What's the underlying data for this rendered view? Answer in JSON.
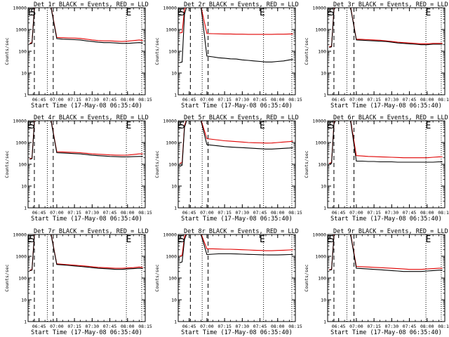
{
  "chart_data": {
    "type": "line",
    "xlabel": "Start Time (17-May-08 06:35:40)",
    "ylabel": "Counts/sec",
    "yscale": "log",
    "ylim": [
      1,
      10000
    ],
    "xlim": [
      "06:35:40",
      "08:15"
    ],
    "x_ticks": [
      "06:45",
      "07:00",
      "07:15",
      "07:30",
      "07:45",
      "08:00",
      "08:15"
    ],
    "y_ticks": [
      "1",
      "10",
      "100",
      "1000",
      "10000"
    ],
    "grid": false,
    "legend": "",
    "colors": {
      "events": "#000000",
      "lld": "#e00000"
    },
    "x_times": [
      "06:37",
      "06:39",
      "06:41",
      "06:43",
      "06:45",
      "06:50",
      "06:55",
      "07:00",
      "07:05",
      "07:10",
      "07:15",
      "07:20",
      "07:25",
      "07:30",
      "07:35",
      "07:40",
      "07:45",
      "07:50",
      "07:55",
      "08:00",
      "08:05",
      "08:10",
      "08:13"
    ],
    "panels": [
      {
        "title": "Det  1r BLACK = Events, RED = LLD",
        "markers": [
          {
            "time": "06:38",
            "label": "E"
          },
          {
            "time": "06:40",
            "label": "S"
          },
          {
            "time": "08:01",
            "label": "E"
          }
        ],
        "dashed_lines": [
          "06:41",
          "06:57"
        ],
        "dotted_lines": [
          "06:52",
          "07:59",
          "08:12"
        ],
        "series": [
          {
            "name": "Events",
            "values": [
              220,
              230,
              9000,
              12000,
              12000,
              12000,
              11000,
              380,
              360,
              350,
              340,
              330,
              300,
              280,
              260,
              250,
              250,
              240,
              230,
              230,
              240,
              250,
              240
            ]
          },
          {
            "name": "LLD",
            "values": [
              230,
              250,
              9500,
              13000,
              13000,
              13000,
              12000,
              430,
              420,
              410,
              400,
              390,
              360,
              330,
              310,
              300,
              300,
              290,
              280,
              290,
              310,
              330,
              310
            ]
          }
        ]
      },
      {
        "title": "Det  2r BLACK = Events, RED = LLD",
        "markers": [
          {
            "time": "06:37",
            "label": "E"
          },
          {
            "time": "06:39",
            "label": "S"
          },
          {
            "time": "07:47",
            "label": "E"
          }
        ],
        "dashed_lines": [
          "06:46",
          "07:01"
        ],
        "dotted_lines": [
          "06:56",
          "07:48",
          "08:12"
        ],
        "series": [
          {
            "name": "Events",
            "values": [
              30,
              32,
              5000,
              12000,
              12000,
              12000,
              11000,
              60,
              55,
              50,
              48,
              45,
              44,
              40,
              38,
              36,
              34,
              32,
              32,
              34,
              36,
              40,
              42
            ]
          },
          {
            "name": "LLD",
            "values": [
              700,
              720,
              9000,
              12000,
              12000,
              12000,
              11000,
              650,
              640,
              630,
              620,
              620,
              610,
              610,
              600,
              600,
              600,
              600,
              600,
              610,
              610,
              620,
              620
            ]
          }
        ]
      },
      {
        "title": "Det  3r BLACK = Events, RED = LLD",
        "markers": [
          {
            "time": "06:37",
            "label": "E"
          },
          {
            "time": "06:39",
            "label": "S"
          },
          {
            "time": "08:01",
            "label": "E"
          }
        ],
        "dashed_lines": [
          "06:41",
          "06:58"
        ],
        "dotted_lines": [
          "06:52",
          "07:59",
          "08:12"
        ],
        "series": [
          {
            "name": "Events",
            "values": [
              150,
              160,
              8000,
              12000,
              12000,
              12000,
              11000,
              330,
              320,
              310,
              300,
              290,
              280,
              260,
              240,
              230,
              220,
              210,
              200,
              200,
              210,
              210,
              210
            ]
          },
          {
            "name": "LLD",
            "values": [
              160,
              170,
              8500,
              13000,
              13000,
              13000,
              12000,
              360,
              350,
              340,
              330,
              320,
              300,
              280,
              260,
              250,
              240,
              230,
              220,
              220,
              230,
              230,
              230
            ]
          }
        ]
      },
      {
        "title": "Det  4r BLACK = Events, RED = LLD",
        "markers": [
          {
            "time": "06:37",
            "label": "E"
          },
          {
            "time": "06:39",
            "label": "S"
          },
          {
            "time": "08:01",
            "label": "E"
          }
        ],
        "dashed_lines": [
          "06:41",
          "06:57"
        ],
        "dotted_lines": [
          "06:52",
          "07:59",
          "08:12"
        ],
        "series": [
          {
            "name": "Events",
            "values": [
              170,
              180,
              8500,
              12000,
              12000,
              12000,
              11000,
              340,
              330,
              320,
              310,
              300,
              280,
              260,
              250,
              240,
              230,
              225,
              220,
              220,
              225,
              230,
              230
            ]
          },
          {
            "name": "LLD",
            "values": [
              180,
              190,
              9000,
              13000,
              13000,
              13000,
              12000,
              380,
              370,
              360,
              350,
              340,
              320,
              300,
              290,
              280,
              270,
              265,
              260,
              265,
              280,
              300,
              300
            ]
          }
        ]
      },
      {
        "title": "Det  5r BLACK = Events, RED = LLD",
        "markers": [
          {
            "time": "06:37",
            "label": "E"
          },
          {
            "time": "06:39",
            "label": "S"
          },
          {
            "time": "07:47",
            "label": "E"
          }
        ],
        "dashed_lines": [
          "06:46",
          "07:01"
        ],
        "dotted_lines": [
          "06:56",
          "07:48",
          "08:12"
        ],
        "series": [
          {
            "name": "Events",
            "values": [
              80,
              90,
              5000,
              11000,
              11000,
              11000,
              10000,
              800,
              750,
              700,
              650,
              620,
              600,
              580,
              560,
              540,
              520,
              500,
              500,
              520,
              540,
              560,
              580
            ]
          },
          {
            "name": "LLD",
            "values": [
              110,
              120,
              6000,
              12000,
              12000,
              12000,
              11000,
              1500,
              1400,
              1300,
              1200,
              1150,
              1100,
              1050,
              1000,
              980,
              960,
              940,
              950,
              1000,
              1050,
              1100,
              1150
            ]
          }
        ]
      },
      {
        "title": "Det  6r BLACK = Events, RED = LLD",
        "markers": [
          {
            "time": "06:37",
            "label": "E"
          },
          {
            "time": "06:39",
            "label": "S"
          },
          {
            "time": "08:01",
            "label": "E"
          }
        ],
        "dashed_lines": [
          "06:41",
          "06:58"
        ],
        "dotted_lines": [
          "06:52",
          "07:59",
          "08:12"
        ],
        "series": [
          {
            "name": "Events",
            "values": [
              100,
              110,
              7000,
              12000,
              12000,
              12000,
              11000,
              140,
              140,
              135,
              135,
              130,
              130,
              130,
              125,
              125,
              125,
              125,
              125,
              125,
              125,
              130,
              130
            ]
          },
          {
            "name": "LLD",
            "values": [
              110,
              120,
              7500,
              13000,
              13000,
              13000,
              12000,
              250,
              240,
              230,
              225,
              220,
              215,
              210,
              205,
              200,
              200,
              200,
              200,
              200,
              210,
              220,
              220
            ]
          }
        ]
      },
      {
        "title": "Det  7r BLACK = Events, RED = LLD",
        "markers": [
          {
            "time": "06:37",
            "label": "E"
          },
          {
            "time": "06:39",
            "label": "S"
          },
          {
            "time": "08:01",
            "label": "E"
          }
        ],
        "dashed_lines": [
          "06:41",
          "06:57"
        ],
        "dotted_lines": [
          "06:52",
          "07:59",
          "08:12"
        ],
        "series": [
          {
            "name": "Events",
            "values": [
              220,
              230,
              9000,
              12000,
              12000,
              12000,
              11000,
              420,
              400,
              380,
              360,
              340,
              320,
              300,
              280,
              270,
              260,
              250,
              250,
              260,
              270,
              280,
              270
            ]
          },
          {
            "name": "LLD",
            "values": [
              230,
              240,
              9500,
              13000,
              13000,
              13000,
              12000,
              450,
              430,
              410,
              390,
              370,
              350,
              330,
              310,
              300,
              290,
              280,
              280,
              290,
              300,
              320,
              300
            ]
          }
        ]
      },
      {
        "title": "Det  8r BLACK = Events, RED = LLD",
        "markers": [
          {
            "time": "06:37",
            "label": "E"
          },
          {
            "time": "06:39",
            "label": "S"
          },
          {
            "time": "07:47",
            "label": "E"
          }
        ],
        "dashed_lines": [
          "06:46",
          "07:01"
        ],
        "dotted_lines": [
          "06:56",
          "07:48",
          "08:12"
        ],
        "series": [
          {
            "name": "Events",
            "values": [
              500,
              550,
              6000,
              11000,
              11000,
              11000,
              10000,
              1200,
              1250,
              1300,
              1300,
              1300,
              1280,
              1250,
              1220,
              1200,
              1180,
              1160,
              1150,
              1150,
              1180,
              1200,
              1200
            ]
          },
          {
            "name": "LLD",
            "values": [
              1000,
              1100,
              8000,
              12000,
              12000,
              12000,
              11000,
              2200,
              2200,
              2150,
              2100,
              2100,
              2050,
              2000,
              1950,
              1900,
              1850,
              1800,
              1800,
              1850,
              1900,
              1950,
              2000
            ]
          }
        ]
      },
      {
        "title": "Det  9r BLACK = Events, RED = LLD",
        "markers": [
          {
            "time": "06:37",
            "label": "E"
          },
          {
            "time": "06:39",
            "label": "S"
          },
          {
            "time": "08:01",
            "label": "E"
          }
        ],
        "dashed_lines": [
          "06:41",
          "06:58"
        ],
        "dotted_lines": [
          "06:52",
          "07:59",
          "08:12"
        ],
        "series": [
          {
            "name": "Events",
            "values": [
              230,
              240,
              8500,
              12000,
              12000,
              12000,
              11000,
              280,
              270,
              260,
              250,
              240,
              230,
              220,
              210,
              200,
              200,
              200,
              200,
              210,
              220,
              230,
              230
            ]
          },
          {
            "name": "LLD",
            "values": [
              240,
              250,
              9000,
              13000,
              13000,
              13000,
              12000,
              340,
              330,
              320,
              310,
              300,
              290,
              280,
              270,
              260,
              250,
              250,
              250,
              260,
              270,
              280,
              280
            ]
          }
        ]
      }
    ]
  }
}
